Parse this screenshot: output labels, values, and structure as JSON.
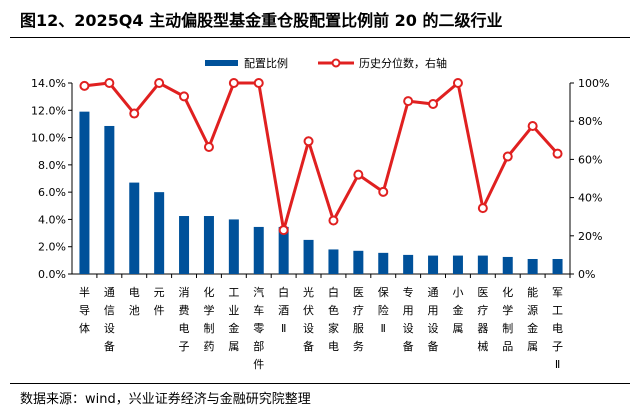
{
  "title": "图12、2025Q4 主动偏股型基金重仓股配置比例前 20 的二级行业",
  "footer": "数据来源：wind，兴业证券经济与金融研究院整理",
  "chart_data": {
    "type": "bar+line",
    "categories": [
      "半导体",
      "通信设备",
      "电池",
      "元件",
      "消费电子",
      "化学制药",
      "工业金属",
      "汽车零部件",
      "白酒Ⅱ",
      "光伏设备",
      "白色家电",
      "医疗服务",
      "保险Ⅱ",
      "专用设备",
      "通用设备",
      "小金属",
      "医疗器械",
      "化学制品",
      "能源金属",
      "军工电子Ⅱ"
    ],
    "series": [
      {
        "name": "配置比例",
        "type": "bar",
        "axis": "left",
        "color": "#00519A",
        "values": [
          11.9,
          10.85,
          6.7,
          6.0,
          4.25,
          4.25,
          4.0,
          3.45,
          3.45,
          2.5,
          1.8,
          1.7,
          1.55,
          1.4,
          1.35,
          1.35,
          1.35,
          1.25,
          1.1,
          1.1
        ]
      },
      {
        "name": "历史分位数，右轴",
        "type": "line",
        "axis": "right",
        "color": "#E02020",
        "values": [
          98.5,
          100,
          84,
          100,
          93,
          66.5,
          100,
          100,
          23,
          69.5,
          28,
          52,
          43,
          90.5,
          89,
          100,
          34.5,
          61.5,
          77.5,
          63
        ]
      }
    ],
    "left_axis": {
      "min": 0,
      "max": 14,
      "step": 2,
      "format": "percent1",
      "ticks": [
        "0.0%",
        "2.0%",
        "4.0%",
        "6.0%",
        "8.0%",
        "10.0%",
        "12.0%",
        "14.0%"
      ]
    },
    "right_axis": {
      "min": 0,
      "max": 100,
      "step": 20,
      "ticks": [
        "0%",
        "20%",
        "40%",
        "60%",
        "80%",
        "100%"
      ]
    },
    "legend_position": "top",
    "grid": false
  }
}
